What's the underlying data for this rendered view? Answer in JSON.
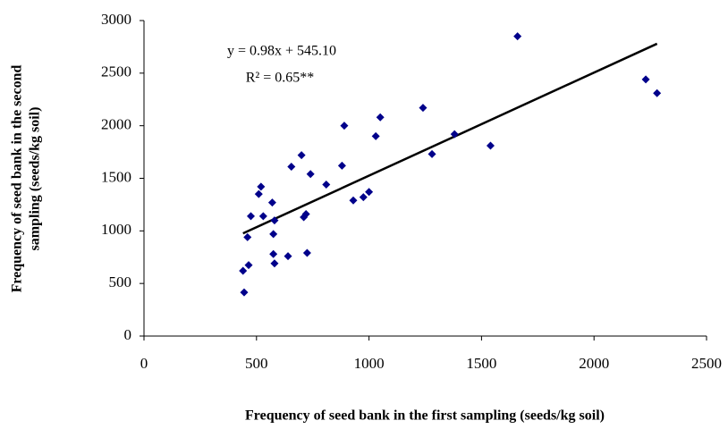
{
  "chart_data": {
    "type": "scatter",
    "xlabel": "Frequency of seed bank in the first sampling (seeds/kg soil)",
    "ylabel": [
      "Frequency of seed bank in the second",
      "sampling (seeds/kg soil)"
    ],
    "color": "#00008b",
    "x": [
      440,
      445,
      460,
      465,
      475,
      510,
      520,
      530,
      570,
      580,
      575,
      575,
      580,
      640,
      655,
      700,
      710,
      720,
      725,
      740,
      810,
      880,
      890,
      930,
      975,
      1000,
      1030,
      1050,
      1240,
      1280,
      1380,
      1540,
      1660,
      2230,
      2280
    ],
    "values": [
      620,
      415,
      940,
      675,
      1140,
      1350,
      1420,
      1140,
      1270,
      1100,
      970,
      780,
      690,
      760,
      1610,
      1720,
      1130,
      1160,
      790,
      1540,
      1440,
      1620,
      2000,
      1290,
      1320,
      1370,
      1900,
      2080,
      2170,
      1730,
      1920,
      1810,
      2850,
      2440,
      2310
    ],
    "fit": {
      "equation": "y = 0.98x + 545.10",
      "r2": "R² = 0.65**",
      "slope": 0.98,
      "intercept": 545.1
    },
    "xlim": [
      0,
      2500
    ],
    "xticks": [
      0,
      500,
      1000,
      1500,
      2000,
      2500
    ],
    "ylim": [
      0,
      3000
    ],
    "yticks": [
      0,
      500,
      1000,
      1500,
      2000,
      2500,
      3000
    ]
  }
}
